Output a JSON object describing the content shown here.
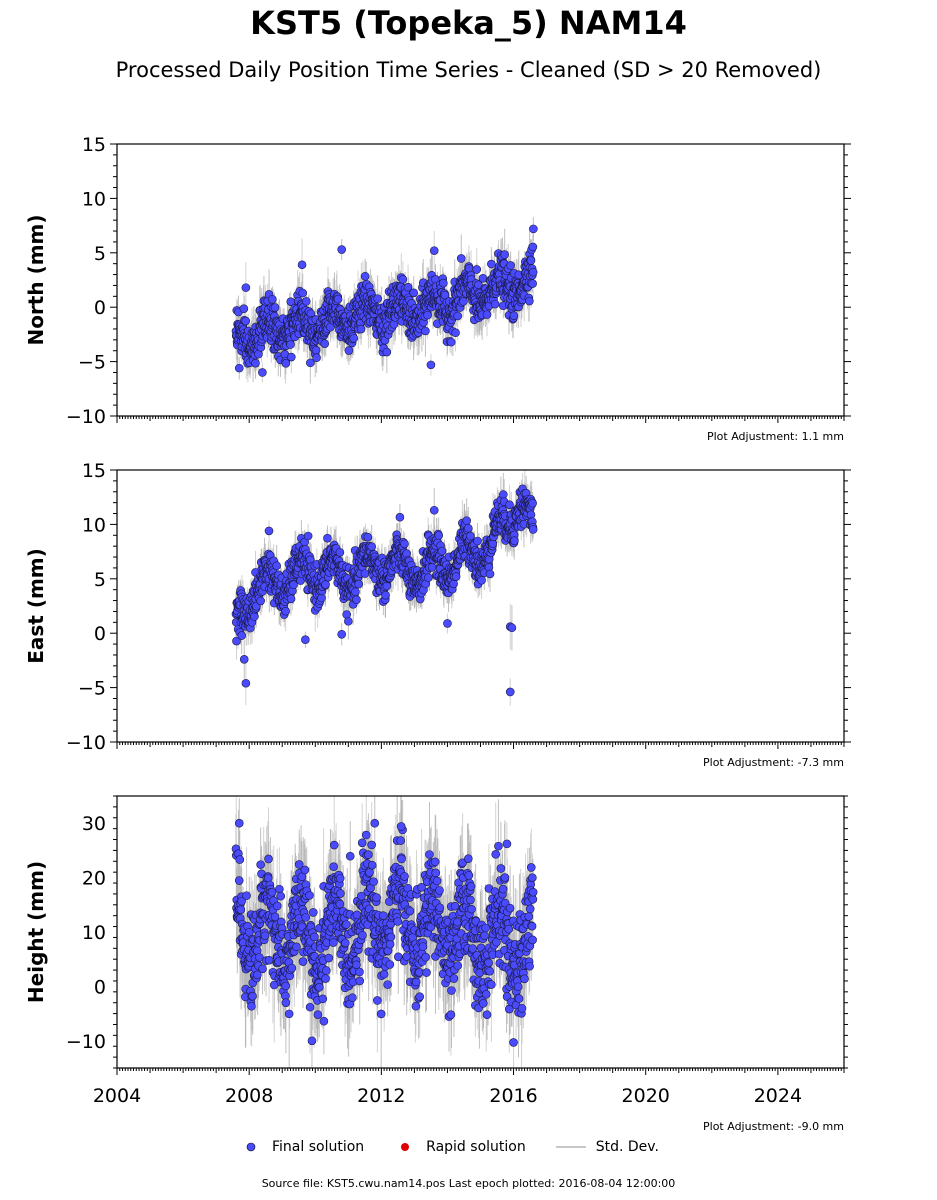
{
  "title": "KST5 (Topeka_5) NAM14",
  "subtitle": "Processed Daily Position Time Series - Cleaned (SD > 20 Removed)",
  "colors": {
    "final": "#4a4aff",
    "rapid": "#e00000",
    "stddev": "#c8c8c8"
  },
  "legend": {
    "final": "Final solution",
    "rapid": "Rapid solution",
    "stddev": "Std. Dev."
  },
  "source": "Source file: KST5.cwu.nam14.pos  Last epoch plotted: 2016-08-04 12:00:00",
  "chart_data": [
    {
      "type": "scatter",
      "ylabel": "North (mm)",
      "adjustment": "Plot Adjustment: 1.1 mm",
      "xlim": [
        2004,
        2026
      ],
      "ylim": [
        -10,
        15
      ],
      "yticks": [
        -10,
        -5,
        0,
        5,
        10,
        15
      ],
      "xtick_labels_shown": false,
      "data_span": [
        2007.6,
        2016.6
      ],
      "trend": [
        [
          2007.6,
          -3.0
        ],
        [
          2009.0,
          -2.0
        ],
        [
          2011.0,
          -0.8
        ],
        [
          2013.0,
          -0.3
        ],
        [
          2015.0,
          1.2
        ],
        [
          2016.6,
          2.6
        ]
      ],
      "seasonal_amplitude": 1.2,
      "scatter_sd": 1.0,
      "outliers": [
        [
          2007.9,
          1.8
        ],
        [
          2009.6,
          3.9
        ],
        [
          2010.8,
          5.3
        ],
        [
          2013.6,
          5.2
        ],
        [
          2016.6,
          7.2
        ],
        [
          2007.7,
          -5.6
        ],
        [
          2013.5,
          -5.3
        ],
        [
          2008.4,
          -6.0
        ]
      ],
      "series": [
        {
          "name": "Final solution",
          "color": "#4a4aff"
        }
      ]
    },
    {
      "type": "scatter",
      "ylabel": "East (mm)",
      "adjustment": "Plot Adjustment: -7.3 mm",
      "xlim": [
        2004,
        2026
      ],
      "ylim": [
        -10,
        15
      ],
      "yticks": [
        -10,
        -5,
        0,
        5,
        10,
        15
      ],
      "xtick_labels_shown": false,
      "data_span": [
        2007.6,
        2016.6
      ],
      "trend": [
        [
          2007.6,
          0.5
        ],
        [
          2008.1,
          4.0
        ],
        [
          2009.0,
          4.8
        ],
        [
          2010.0,
          5.8
        ],
        [
          2011.0,
          5.2
        ],
        [
          2012.0,
          6.5
        ],
        [
          2013.0,
          5.5
        ],
        [
          2014.0,
          6.5
        ],
        [
          2015.0,
          7.5
        ],
        [
          2015.7,
          9.5
        ],
        [
          2016.2,
          12.5
        ],
        [
          2016.6,
          9.0
        ]
      ],
      "seasonal_amplitude": 1.5,
      "scatter_sd": 0.9,
      "outliers": [
        [
          2015.9,
          0.6
        ],
        [
          2015.95,
          0.5
        ],
        [
          2015.9,
          -5.4
        ],
        [
          2007.9,
          -4.6
        ],
        [
          2007.85,
          -2.4
        ],
        [
          2008.6,
          9.4
        ],
        [
          2013.6,
          11.3
        ],
        [
          2009.7,
          -0.6
        ],
        [
          2010.8,
          -0.1
        ],
        [
          2014.0,
          0.9
        ]
      ],
      "series": [
        {
          "name": "Final solution",
          "color": "#4a4aff"
        }
      ]
    },
    {
      "type": "scatter",
      "ylabel": "Height (mm)",
      "adjustment": "Plot Adjustment: -9.0 mm",
      "xlim": [
        2004,
        2026
      ],
      "ylim": [
        -15,
        35
      ],
      "yticks": [
        -10,
        0,
        10,
        20,
        30
      ],
      "xticks": [
        2004,
        2008,
        2012,
        2016,
        2020,
        2024
      ],
      "data_span": [
        2007.6,
        2016.6
      ],
      "trend": [
        [
          2007.6,
          11.0
        ],
        [
          2010.0,
          8.0
        ],
        [
          2012.0,
          13.0
        ],
        [
          2014.0,
          10.0
        ],
        [
          2016.6,
          7.0
        ]
      ],
      "seasonal_amplitude": 6.0,
      "scatter_sd": 4.5,
      "outliers": [
        [
          2007.7,
          30.0
        ],
        [
          2011.8,
          30.0
        ],
        [
          2012.6,
          29.4
        ],
        [
          2015.8,
          26.2
        ],
        [
          2009.9,
          -10.0
        ],
        [
          2016.0,
          -10.3
        ]
      ],
      "series": [
        {
          "name": "Final solution",
          "color": "#4a4aff"
        }
      ]
    }
  ]
}
